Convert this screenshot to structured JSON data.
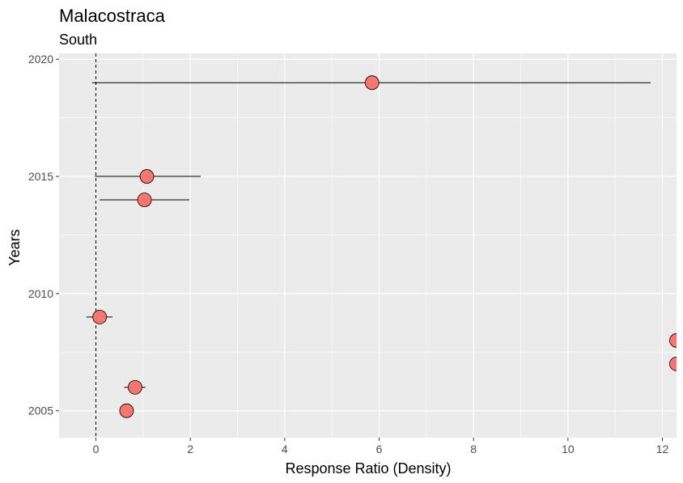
{
  "chart_data": {
    "type": "scatter",
    "title": "Malacostraca",
    "subtitle": "South",
    "xlabel": "Response Ratio (Density)",
    "ylabel": "Years",
    "xlim": [
      -0.78,
      12.3
    ],
    "ylim": [
      2003.85,
      2020.25
    ],
    "x_ticks": [
      0,
      2,
      4,
      6,
      8,
      10,
      12
    ],
    "y_ticks": [
      2005,
      2010,
      2015,
      2020
    ],
    "reference_line_x": 0,
    "grid": true,
    "points": [
      {
        "year": 2019,
        "x": 5.85,
        "lo": -0.08,
        "hi": 11.75
      },
      {
        "year": 2015,
        "x": 1.08,
        "lo": -0.02,
        "hi": 2.22
      },
      {
        "year": 2014,
        "x": 1.03,
        "lo": 0.08,
        "hi": 1.98
      },
      {
        "year": 2009,
        "x": 0.08,
        "lo": -0.2,
        "hi": 0.35
      },
      {
        "year": 2008,
        "x": 12.3,
        "lo": null,
        "hi": null
      },
      {
        "year": 2007,
        "x": 12.3,
        "lo": null,
        "hi": null
      },
      {
        "year": 2006,
        "x": 0.83,
        "lo": 0.6,
        "hi": 1.05
      },
      {
        "year": 2005,
        "x": 0.65,
        "lo": 0.63,
        "hi": 0.67
      }
    ],
    "colors": {
      "panel_bg": "#ebebeb",
      "grid": "#ffffff",
      "point_fill": "#f8766d",
      "point_stroke": "#000000",
      "errorbar": "#000000"
    }
  }
}
